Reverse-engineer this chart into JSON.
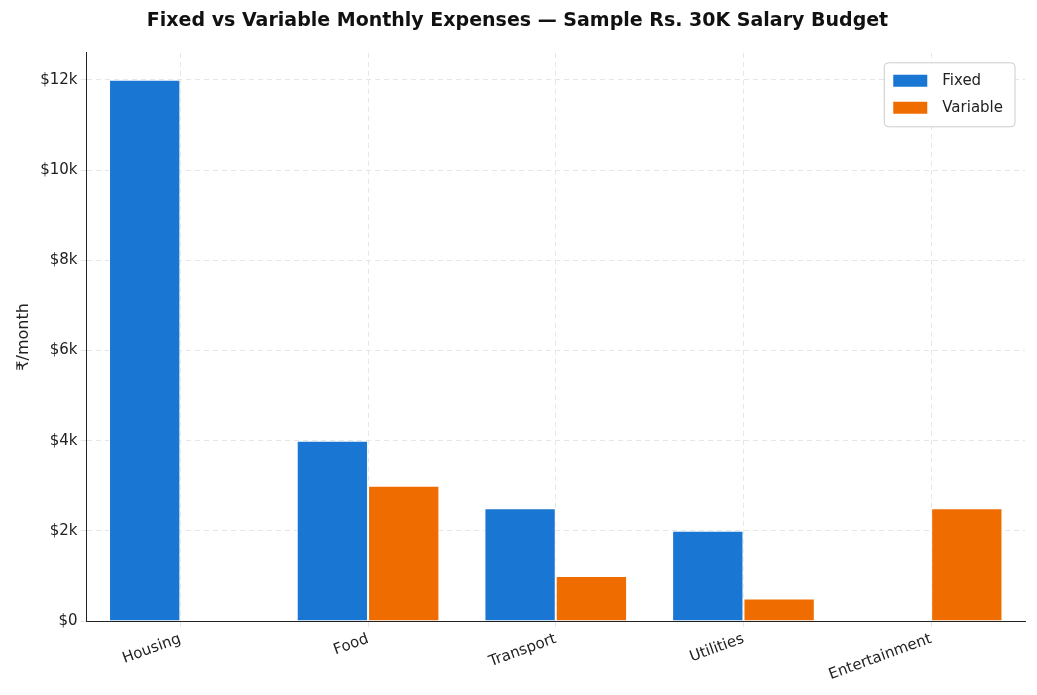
{
  "chart_data": {
    "type": "bar",
    "title": "Fixed vs Variable Monthly Expenses — Sample Rs. 30K Salary Budget",
    "ylabel": "₹/month",
    "categories": [
      "Housing",
      "Food",
      "Transport",
      "Utilities",
      "Entertainment"
    ],
    "series": [
      {
        "name": "Fixed",
        "color": "#1976d2",
        "values": [
          12000,
          4000,
          2500,
          2000,
          0
        ]
      },
      {
        "name": "Variable",
        "color": "#ef6c00",
        "values": [
          0,
          3000,
          1000,
          500,
          2500
        ]
      }
    ],
    "ylim": [
      0,
      12600
    ],
    "yticks": [
      {
        "value": 0,
        "label": "$0"
      },
      {
        "value": 2000,
        "label": "$2k"
      },
      {
        "value": 4000,
        "label": "$4k"
      },
      {
        "value": 6000,
        "label": "$6k"
      },
      {
        "value": 8000,
        "label": "$8k"
      },
      {
        "value": 10000,
        "label": "$10k"
      },
      {
        "value": 12000,
        "label": "$12k"
      }
    ],
    "grid": true,
    "legend": "top right"
  }
}
